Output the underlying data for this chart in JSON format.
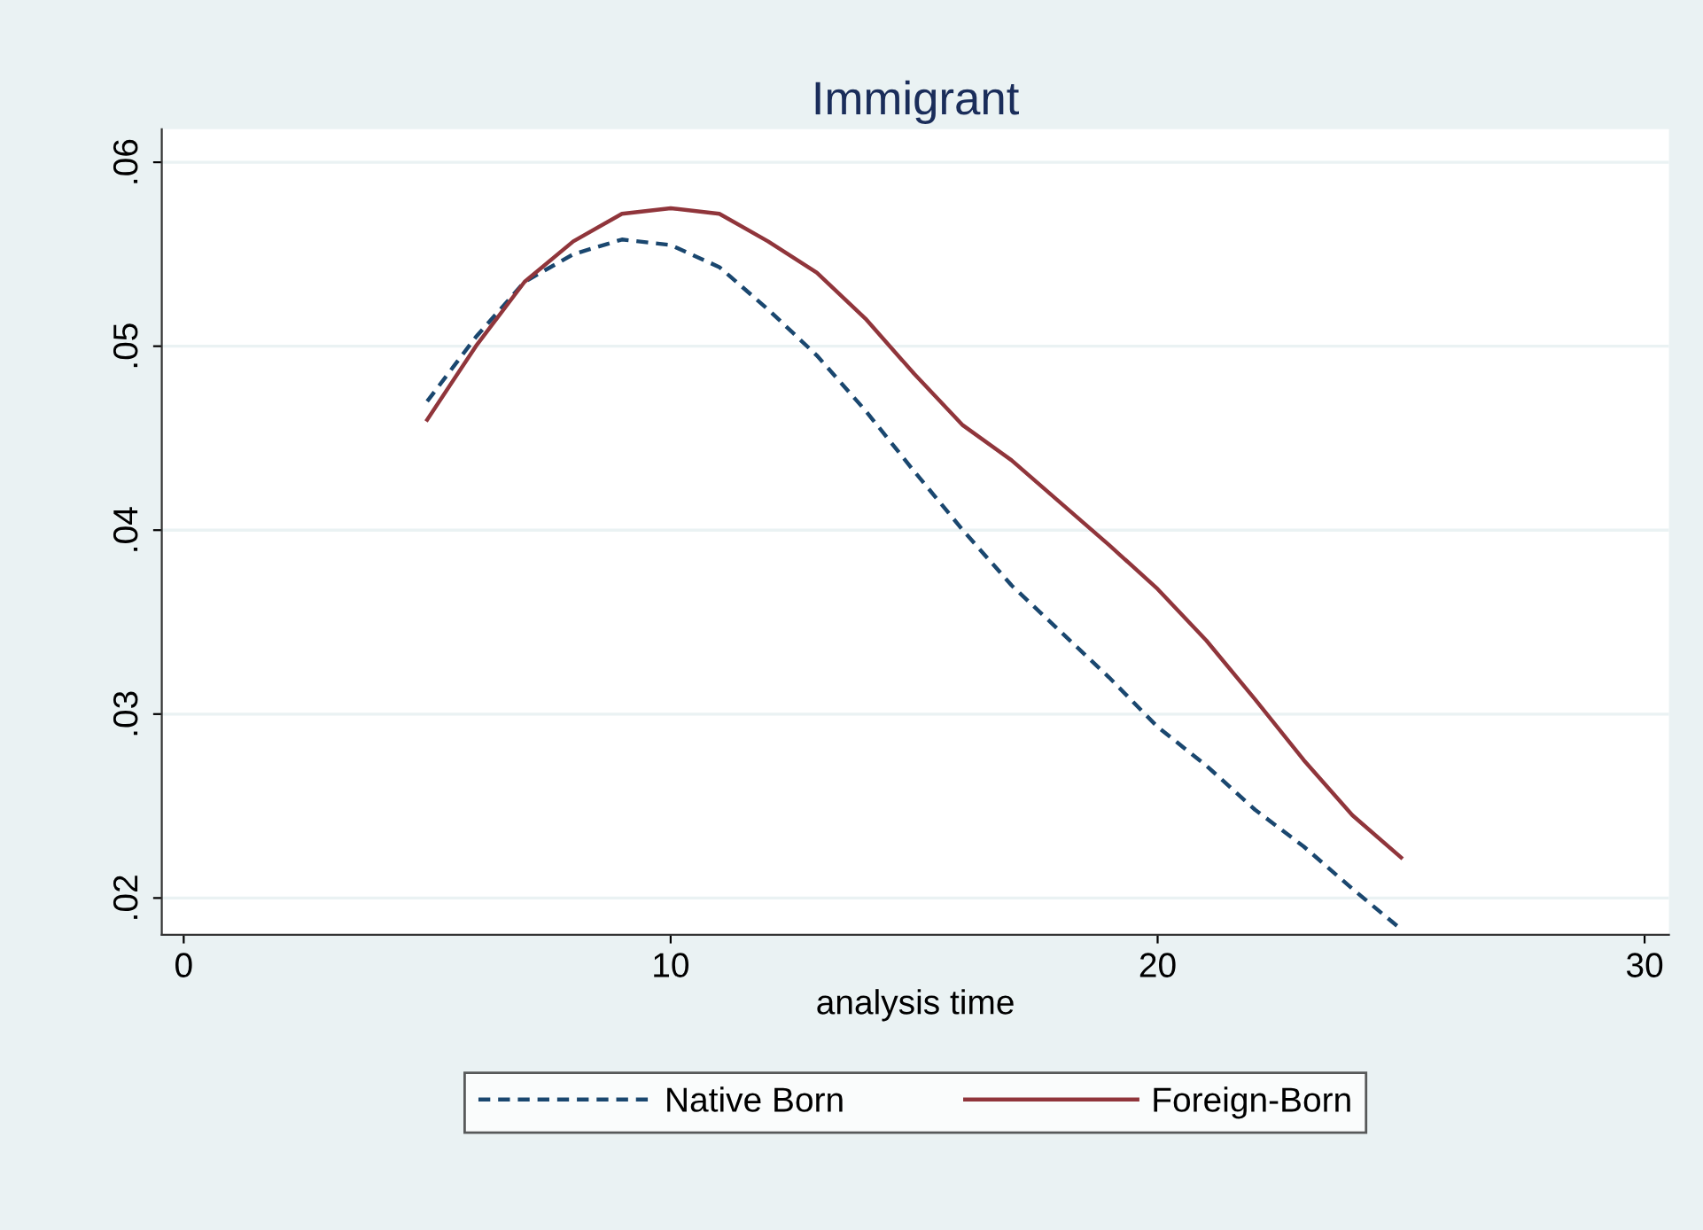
{
  "chart_data": {
    "type": "line",
    "title": "Immigrant",
    "xlabel": "analysis time",
    "x": [
      5,
      6,
      7,
      8,
      9,
      10,
      11,
      12,
      13,
      14,
      15,
      16,
      17,
      18,
      19,
      20,
      21,
      22,
      23,
      24,
      25
    ],
    "series": [
      {
        "name": "Native Born",
        "color": "#1a476f",
        "line_style": "dashed",
        "values": [
          0.047,
          0.0505,
          0.0535,
          0.055,
          0.0558,
          0.0555,
          0.0543,
          0.052,
          0.0495,
          0.0465,
          0.0432,
          0.04,
          0.037,
          0.0345,
          0.032,
          0.0293,
          0.0272,
          0.0248,
          0.0228,
          0.0205,
          0.0183
        ]
      },
      {
        "name": "Foreign-Born",
        "color": "#90353b",
        "line_style": "solid",
        "values": [
          0.046,
          0.05,
          0.0535,
          0.0557,
          0.0572,
          0.0575,
          0.0572,
          0.0557,
          0.054,
          0.0515,
          0.0485,
          0.0457,
          0.0438,
          0.0415,
          0.0392,
          0.0368,
          0.034,
          0.0308,
          0.0275,
          0.0245,
          0.0222
        ]
      }
    ],
    "xlim": [
      -0.45,
      30.5
    ],
    "xticks": [
      0,
      10,
      20,
      30
    ],
    "ylim": [
      0.018,
      0.0618
    ],
    "yticks": [
      {
        "value": 0.02,
        "label": ".02"
      },
      {
        "value": 0.03,
        "label": ".03"
      },
      {
        "value": 0.04,
        "label": ".04"
      },
      {
        "value": 0.05,
        "label": ".05"
      },
      {
        "value": 0.06,
        "label": ".06"
      }
    ],
    "grid": "y",
    "legend": "bottom",
    "marker": "none"
  }
}
